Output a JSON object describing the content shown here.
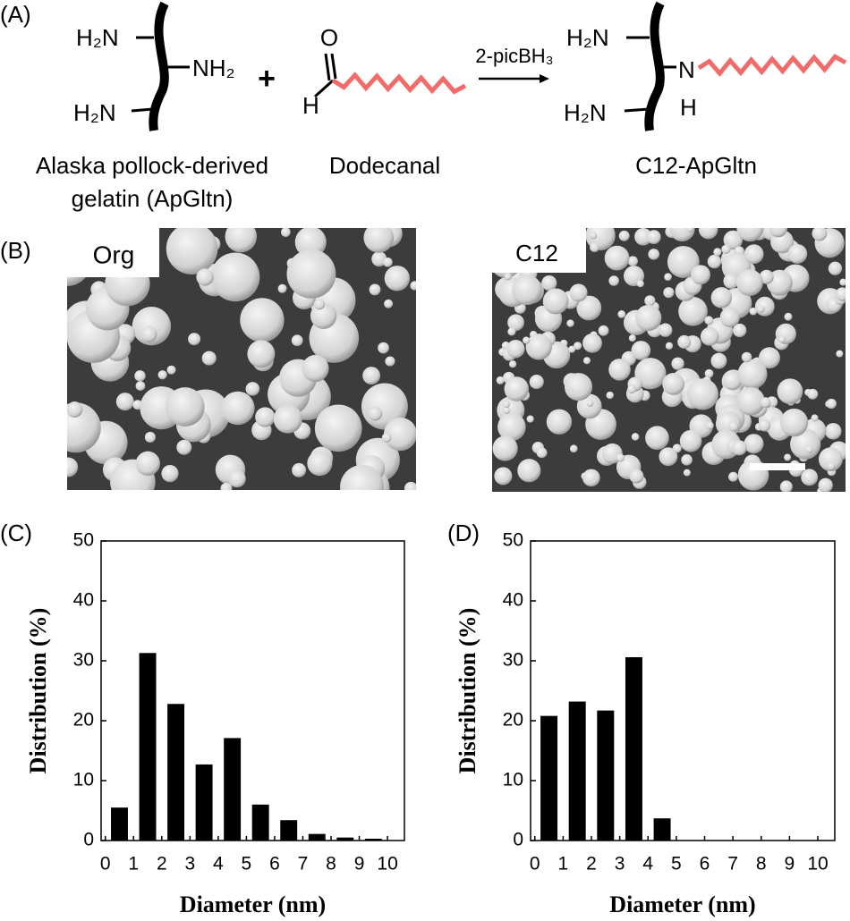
{
  "panel_a": {
    "label": "(A)",
    "gelatin_amine_top": "H₂N",
    "gelatin_amine_side": "NH₂",
    "gelatin_amine_bottom": "H₂N",
    "plus": "+",
    "aldehyde_o": "O",
    "aldehyde_h": "H",
    "reagent": "2-picBH₃",
    "product_amine_top": "H₂N",
    "product_n": "N",
    "product_h": "H",
    "product_amine_bottom": "H₂N",
    "gelatin_caption": [
      "Alaska pollock-derived",
      "gelatin (ApGltn)"
    ],
    "dodecanal_caption": "Dodecanal",
    "product_caption": "C12-ApGltn"
  },
  "panel_b": {
    "label": "(B)",
    "images": [
      "Org",
      "C12"
    ]
  },
  "chart_data": [
    {
      "type": "histogram",
      "panel_label": "(C)",
      "x_label": "Diameter (nm)",
      "y_label": "Distribution (%)",
      "bins": [
        0,
        1,
        2,
        3,
        4,
        5,
        6,
        7,
        8,
        9,
        10
      ],
      "values": [
        5.5,
        31.3,
        22.8,
        12.7,
        17.1,
        6.0,
        3.4,
        1.1,
        0.5,
        0.3
      ],
      "color": "#000000",
      "xlim": [
        -0.15,
        10.6
      ],
      "ylim": [
        0,
        50
      ],
      "xticks": [
        0,
        1,
        2,
        3,
        4,
        5,
        6,
        7,
        8,
        9,
        10
      ],
      "yticks": [
        0,
        10,
        20,
        30,
        40,
        50
      ]
    },
    {
      "type": "histogram",
      "panel_label": "(D)",
      "x_label": "Diameter (nm)",
      "y_label": "Distribution (%)",
      "bins": [
        0,
        1,
        2,
        3,
        4,
        5
      ],
      "values": [
        20.8,
        23.2,
        21.7,
        30.6,
        3.7
      ],
      "color": "#000000",
      "xlim": [
        -0.15,
        10.6
      ],
      "ylim": [
        0,
        50
      ],
      "xticks": [
        0,
        1,
        2,
        3,
        4,
        5,
        6,
        7,
        8,
        9,
        10
      ],
      "yticks": [
        0,
        10,
        20,
        30,
        40,
        50
      ]
    }
  ]
}
